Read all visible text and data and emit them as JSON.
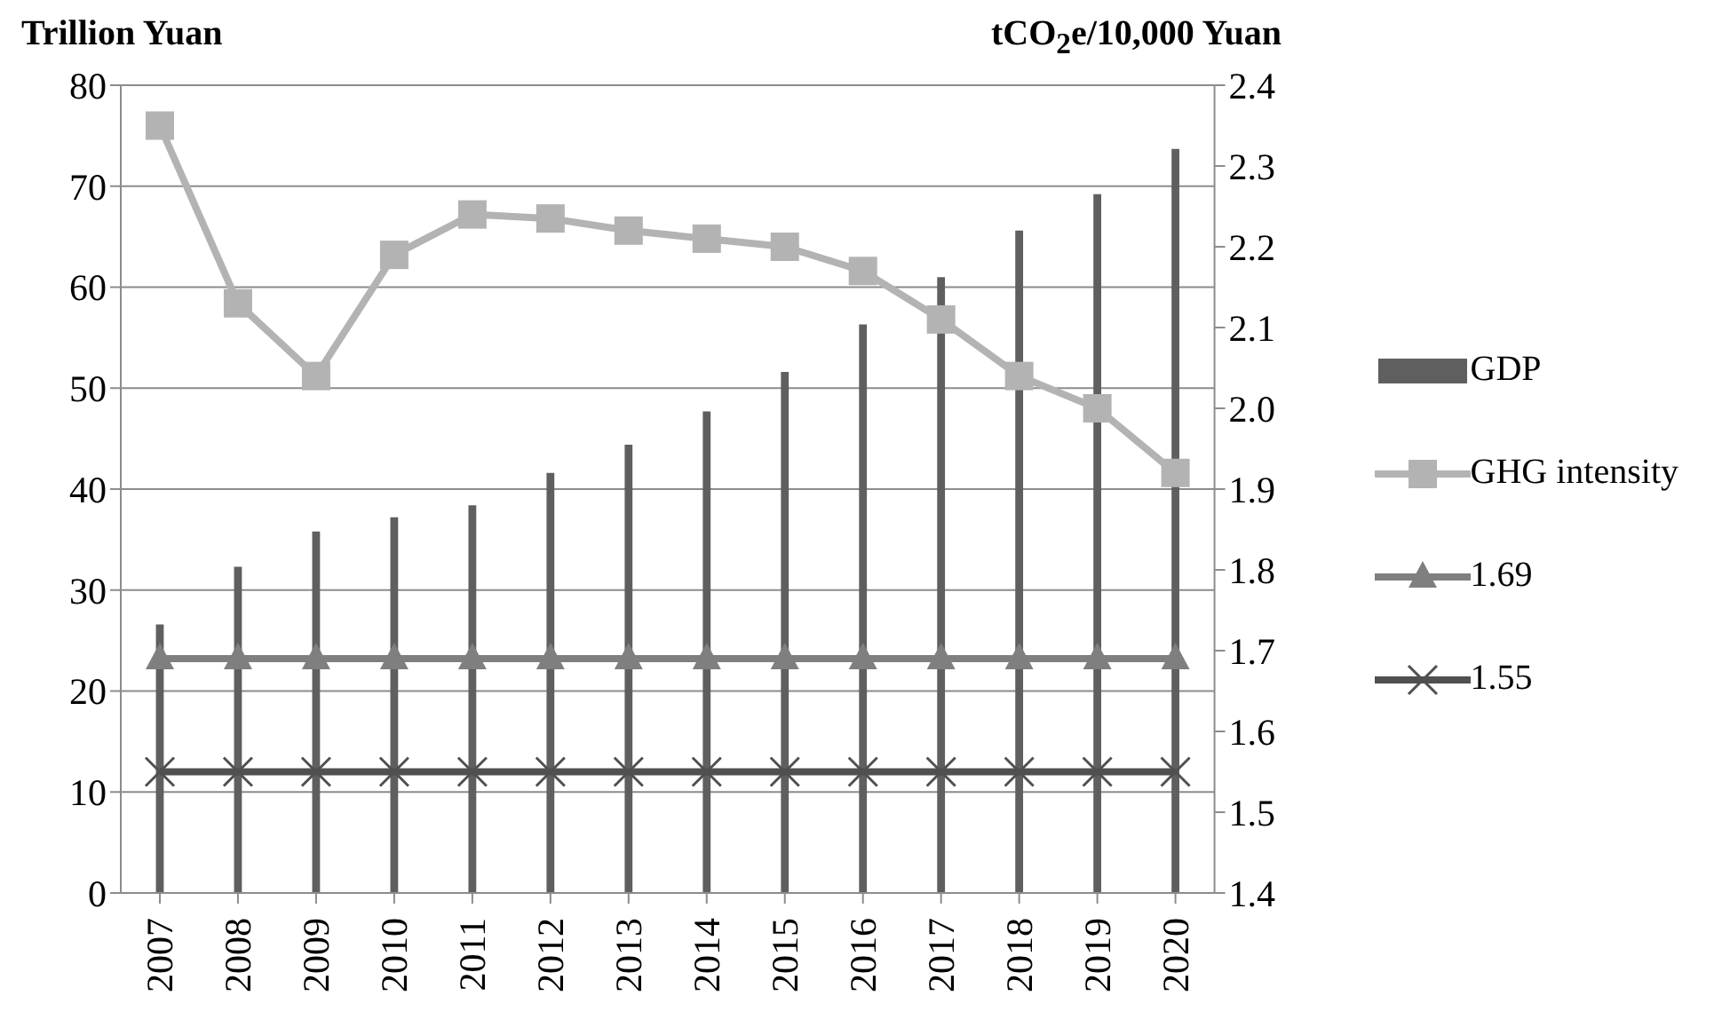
{
  "chart_data": {
    "type": "bar",
    "ylabel": "Trillion Yuan",
    "y2label": "tCO$_{2}$e/10,000 Yuan",
    "categories": [
      "2007",
      "2008",
      "2009",
      "2010",
      "2011",
      "2012",
      "2013",
      "2014",
      "2015",
      "2016",
      "2017",
      "2018",
      "2019",
      "2020"
    ],
    "series": [
      {
        "name": "GDP",
        "color": "#5f5f5f",
        "values": [
          26.6,
          32.3,
          35.8,
          37.2,
          38.4,
          41.6,
          44.4,
          47.7,
          51.6,
          56.3,
          61.0,
          65.6,
          69.2,
          73.7
        ]
      },
      {
        "name": "GHG intensity",
        "type": "line",
        "axis": "y2",
        "marker": "square",
        "color": "#b3b3b3",
        "values": [
          2.35,
          2.13,
          2.04,
          2.19,
          2.24,
          2.235,
          2.22,
          2.21,
          2.2,
          2.17,
          2.11,
          2.04,
          2.0,
          1.92
        ]
      },
      {
        "name": "1.69",
        "type": "line",
        "axis": "y2",
        "marker": "triangle",
        "color": "#7f7f7f",
        "values": [
          1.69,
          1.69,
          1.69,
          1.69,
          1.69,
          1.69,
          1.69,
          1.69,
          1.69,
          1.69,
          1.69,
          1.69,
          1.69,
          1.69
        ]
      },
      {
        "name": "1.55",
        "type": "line",
        "axis": "y2",
        "marker": "cross",
        "color": "#505050",
        "values": [
          1.55,
          1.55,
          1.55,
          1.55,
          1.55,
          1.55,
          1.55,
          1.55,
          1.55,
          1.55,
          1.55,
          1.55,
          1.55,
          1.55
        ]
      }
    ],
    "ylim": [
      0,
      80
    ],
    "yticks": [
      0,
      10,
      20,
      30,
      40,
      50,
      60,
      70,
      80
    ],
    "y2lim": [
      1.4,
      2.4
    ],
    "y2ticks": [
      {
        "value": 1.4,
        "label": "1.4"
      },
      {
        "value": 1.5,
        "label": "1.5"
      },
      {
        "value": 1.6,
        "label": "1.6"
      },
      {
        "value": 1.7,
        "label": "1.7"
      },
      {
        "value": 1.8,
        "label": "1.8"
      },
      {
        "value": 1.9,
        "label": "1.9"
      },
      {
        "value": 2.0,
        "label": "2.0"
      },
      {
        "value": 2.1,
        "label": "2.1"
      },
      {
        "value": 2.2,
        "label": "2.2"
      },
      {
        "value": 2.3,
        "label": "2.3"
      },
      {
        "value": 2.4,
        "label": "2.4"
      }
    ],
    "grid": "y",
    "legend": "right"
  }
}
